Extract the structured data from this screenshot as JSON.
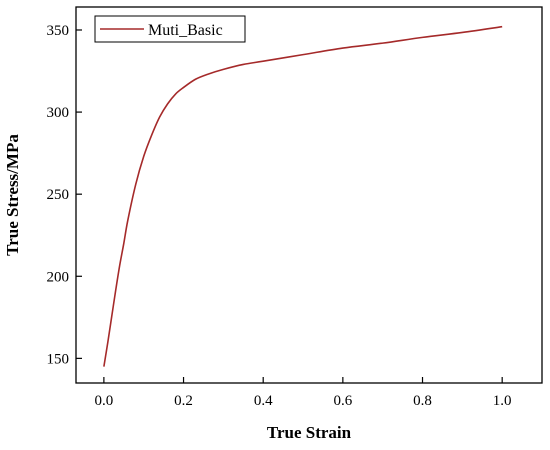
{
  "chart_data": {
    "type": "line",
    "title": "",
    "xlabel": "True Strain",
    "ylabel": "True Stress/MPa",
    "xlim": [
      -0.07,
      1.1
    ],
    "ylim": [
      135,
      364
    ],
    "x_ticks": [
      0.0,
      0.2,
      0.4,
      0.6,
      0.8,
      1.0
    ],
    "x_tick_labels": [
      "0.0",
      "0.2",
      "0.4",
      "0.6",
      "0.8",
      "1.0"
    ],
    "y_ticks": [
      150,
      200,
      250,
      300,
      350
    ],
    "y_tick_labels": [
      "150",
      "200",
      "250",
      "300",
      "350"
    ],
    "grid": false,
    "legend": {
      "position": "top-left",
      "entries": [
        "Muti_Basic"
      ]
    },
    "series": [
      {
        "name": "Muti_Basic",
        "color": "#a52a2a",
        "x": [
          0.0,
          0.01,
          0.02,
          0.03,
          0.04,
          0.05,
          0.06,
          0.08,
          0.1,
          0.12,
          0.14,
          0.16,
          0.18,
          0.2,
          0.23,
          0.26,
          0.3,
          0.35,
          0.4,
          0.5,
          0.6,
          0.7,
          0.8,
          0.9,
          1.0
        ],
        "y": [
          145,
          160,
          176,
          192,
          207,
          220,
          234,
          256,
          273,
          286,
          297,
          305,
          311,
          315,
          320,
          323,
          326,
          329,
          331,
          335,
          339,
          342,
          345.5,
          348.5,
          352
        ]
      }
    ]
  }
}
